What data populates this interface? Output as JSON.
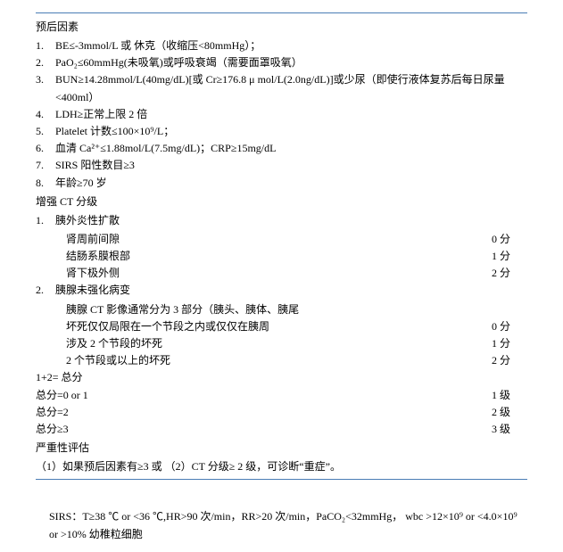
{
  "rule_color": "#4a7db5",
  "sections": {
    "prognostic": {
      "title": "预后因素",
      "items": [
        "BE≤-3mmol/L 或 休克（收缩压<80mmHg）；",
        "PaO₂≤60mmHg(未吸氧)或呼吸衰竭（需要面罩吸氧）",
        "BUN≥14.28mmol/L(40mg/dL)[或 Cr≥176.8 μ mol/L(2.0ng/dL)]或少尿（即使行液体复苏后每日尿量<400ml）",
        "LDH≥正常上限 2 倍",
        "Platelet 计数≤100×10⁹/L；",
        "血清 Ca²⁺≤1.88mol/L(7.5mg/dL)；CRP≥15mg/dL",
        "SIRS 阳性数目≥3",
        "年龄≥70 岁"
      ]
    },
    "ct": {
      "title": "增强 CT 分级",
      "groups": [
        {
          "head": "胰外炎性扩散",
          "rows": [
            {
              "label": "肾周前间隙",
              "score": "0 分"
            },
            {
              "label": "结肠系膜根部",
              "score": "1 分"
            },
            {
              "label": "肾下极外侧",
              "score": "2 分"
            }
          ]
        },
        {
          "head": "胰腺未强化病变",
          "note": "胰腺 CT 影像通常分为 3 部分（胰头、胰体、胰尾",
          "rows": [
            {
              "label": "坏死仅仅局限在一个节段之内或仅仅在胰周",
              "score": "0 分"
            },
            {
              "label": "涉及 2 个节段的坏死",
              "score": "1 分"
            },
            {
              "label": "2 个节段或以上的坏死",
              "score": "2 分"
            }
          ]
        }
      ],
      "sum": "1+2= 总分",
      "totals": [
        {
          "label": "总分=0 or 1",
          "grade": "1 级"
        },
        {
          "label": "总分=2",
          "grade": "2 级"
        },
        {
          "label": "总分≥3",
          "grade": "3 级"
        }
      ]
    },
    "severity": {
      "title": "严重性评估",
      "line": "（1）如果预后因素有≥3 或 （2）CT 分级≥ 2 级，可诊断“重症”。"
    },
    "sirs": "SIRS：T≥38 ℃ or <36 ℃,HR>90 次/min，RR>20 次/min，PaCO₂<32mmHg， wbc >12×10⁹ or <4.0×10⁹ or >10% 幼稚粒细胞"
  }
}
